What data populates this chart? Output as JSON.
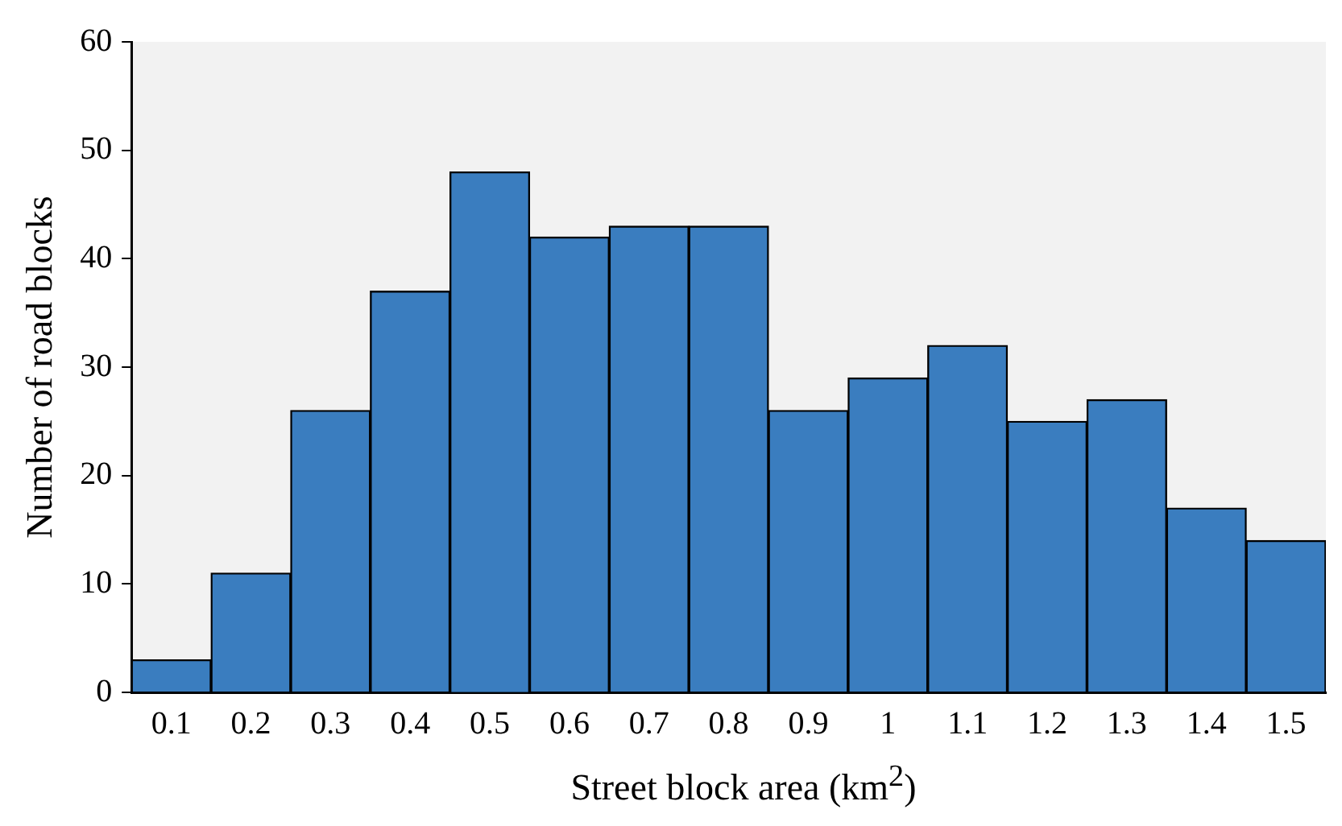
{
  "chart_data": {
    "type": "bar",
    "xlabel": "Street block area (km$^{2}$)",
    "ylabel": "Number of road blocks",
    "categories": [
      "0.1",
      "0.2",
      "0.3",
      "0.4",
      "0.5",
      "0.6",
      "0.7",
      "0.8",
      "0.9",
      "1",
      "1.1",
      "1.2",
      "1.3",
      "1.4",
      "1.5"
    ],
    "values": [
      3,
      11,
      26,
      37,
      48,
      42,
      43,
      43,
      26,
      29,
      32,
      25,
      27,
      17,
      14
    ],
    "color": "#3a7dbf",
    "ylim": [
      0,
      60
    ],
    "yticks": [
      0,
      10,
      20,
      30,
      40,
      50,
      60
    ],
    "grid": false,
    "legend": false
  }
}
